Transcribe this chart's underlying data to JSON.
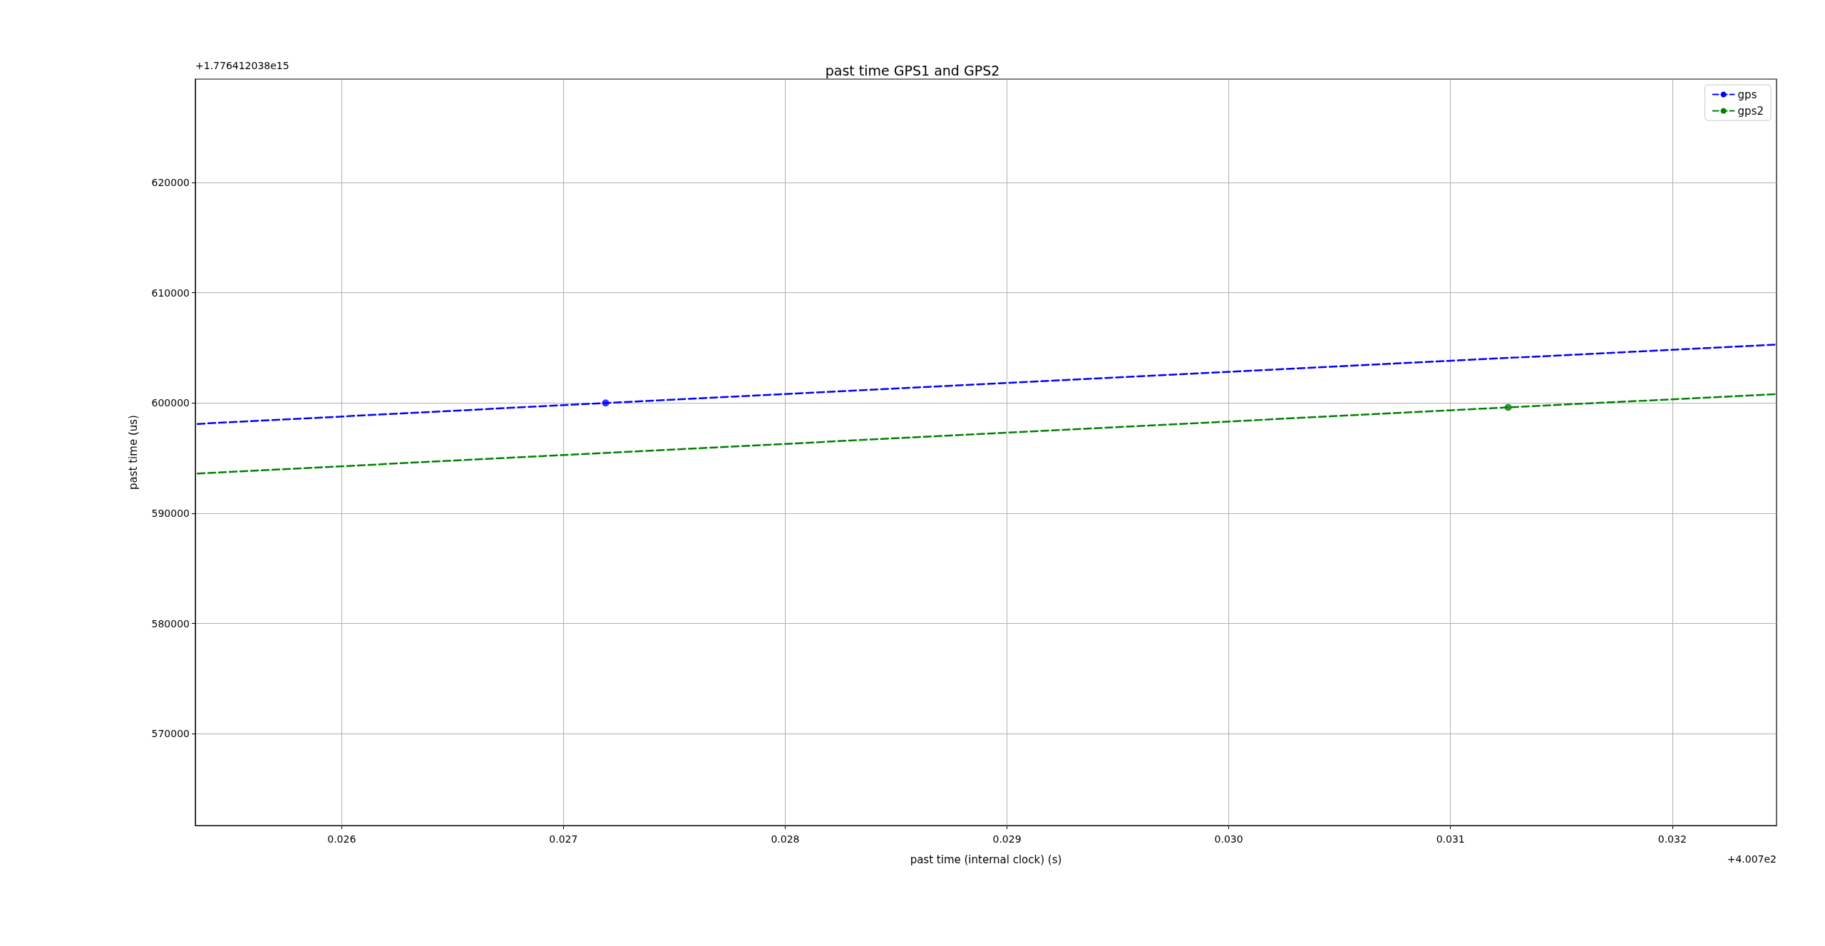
{
  "chart_data": {
    "type": "line",
    "title": "past time GPS1 and GPS2",
    "xlabel": "past time (internal clock) (s)",
    "ylabel": "past time (us)",
    "annotations": [
      "+1.776412038e15",
      "+4.007e2"
    ],
    "series": [
      {
        "name": "gps",
        "color": "#0000ff",
        "x": [
          0.02535,
          0.02719,
          0.03247
        ],
        "values": [
          598100,
          600000,
          605300
        ],
        "line_style": "dashed",
        "marker": "none"
      },
      {
        "name": "gps2",
        "color": "#008000",
        "x": [
          0.02535,
          0.03126,
          0.03247
        ],
        "values": [
          593600,
          599600,
          600800
        ],
        "line_style": "dashed",
        "marker": "none"
      },
      {
        "type": "scatter",
        "color": "#0000ff",
        "x": [
          0.02719
        ],
        "values": [
          600000
        ],
        "marker": "circle"
      },
      {
        "type": "scatter",
        "color": "#008000",
        "x": [
          0.03126
        ],
        "values": [
          599600
        ],
        "marker": "circle"
      }
    ],
    "xlim": [
      0.02534,
      0.03247
    ],
    "ylim": [
      561670,
      629375
    ],
    "xticks": [
      0.026,
      0.027,
      0.028,
      0.029,
      {
        "value": 0.03,
        "label": "0.030"
      },
      0.031,
      0.032
    ],
    "yticks": [
      570000,
      580000,
      590000,
      600000,
      610000,
      620000
    ],
    "grid": true,
    "legend": "top right"
  }
}
